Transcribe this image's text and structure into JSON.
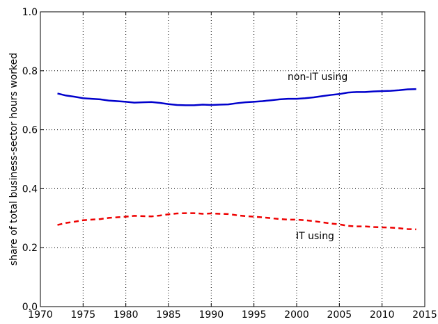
{
  "chart_data": {
    "type": "line",
    "ylabel": "share of total business-sector hours worked",
    "x": [
      1972,
      1973,
      1974,
      1975,
      1976,
      1977,
      1978,
      1979,
      1980,
      1981,
      1982,
      1983,
      1984,
      1985,
      1986,
      1987,
      1988,
      1989,
      1990,
      1991,
      1992,
      1993,
      1994,
      1995,
      1996,
      1997,
      1998,
      1999,
      2000,
      2001,
      2002,
      2003,
      2004,
      2005,
      2006,
      2007,
      2008,
      2009,
      2010,
      2011,
      2012,
      2013,
      2014
    ],
    "series": [
      {
        "name": "non-IT using",
        "color": "#0000cc",
        "dash": false,
        "values": [
          0.723,
          0.716,
          0.712,
          0.707,
          0.705,
          0.703,
          0.699,
          0.697,
          0.695,
          0.692,
          0.693,
          0.694,
          0.691,
          0.687,
          0.684,
          0.683,
          0.683,
          0.685,
          0.684,
          0.685,
          0.686,
          0.69,
          0.693,
          0.695,
          0.697,
          0.7,
          0.703,
          0.705,
          0.705,
          0.707,
          0.71,
          0.714,
          0.718,
          0.721,
          0.726,
          0.728,
          0.728,
          0.73,
          0.731,
          0.732,
          0.734,
          0.737,
          0.738
        ]
      },
      {
        "name": "IT using",
        "color": "#ee0000",
        "dash": true,
        "values": [
          0.277,
          0.284,
          0.288,
          0.293,
          0.295,
          0.297,
          0.301,
          0.303,
          0.305,
          0.308,
          0.307,
          0.306,
          0.309,
          0.313,
          0.316,
          0.317,
          0.317,
          0.315,
          0.316,
          0.315,
          0.314,
          0.31,
          0.307,
          0.305,
          0.303,
          0.3,
          0.297,
          0.295,
          0.295,
          0.293,
          0.29,
          0.286,
          0.282,
          0.279,
          0.274,
          0.272,
          0.272,
          0.27,
          0.269,
          0.268,
          0.266,
          0.263,
          0.262
        ]
      }
    ],
    "xlim": [
      1970,
      2015
    ],
    "xticks": [
      1970,
      1975,
      1980,
      1985,
      1990,
      1995,
      2000,
      2005,
      2010,
      2015
    ],
    "ylim": [
      0,
      1
    ],
    "yticks": [
      {
        "value": 0,
        "label": "0.0"
      },
      0.2,
      0.4,
      0.6,
      0.8,
      {
        "value": 1,
        "label": "1.0"
      }
    ],
    "grid": true
  }
}
